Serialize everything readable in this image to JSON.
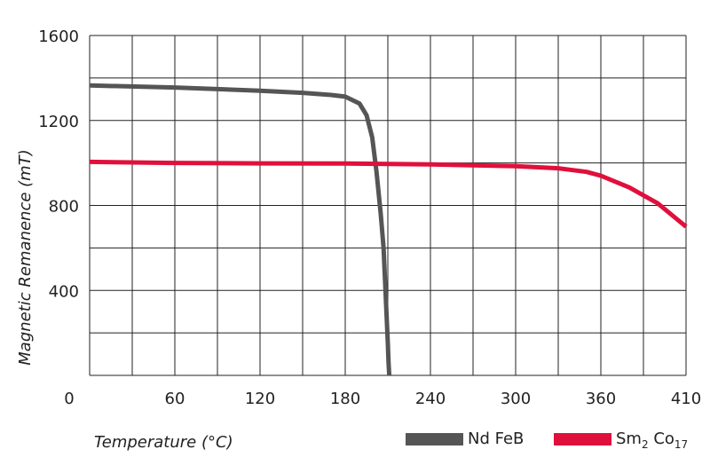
{
  "chart_data": {
    "type": "line",
    "xlabel": "Temperature (°C)",
    "ylabel": "Magnetic Remanence (mT)",
    "x_ticks": [
      0,
      60,
      120,
      180,
      240,
      300,
      360,
      410
    ],
    "y_ticks": [
      0,
      400,
      800,
      1200,
      1600
    ],
    "xlim": [
      0,
      420
    ],
    "ylim": [
      0,
      1600
    ],
    "grid": true,
    "legend_position": "bottom-right",
    "series": [
      {
        "name": "Nd FeB",
        "color": "#555555",
        "legend": {
          "main": "Nd FeB"
        },
        "points": [
          [
            0,
            1365
          ],
          [
            60,
            1355
          ],
          [
            120,
            1340
          ],
          [
            150,
            1330
          ],
          [
            170,
            1320
          ],
          [
            180,
            1312
          ],
          [
            190,
            1280
          ],
          [
            195,
            1225
          ],
          [
            199,
            1120
          ],
          [
            202,
            960
          ],
          [
            205,
            760
          ],
          [
            207,
            600
          ],
          [
            208,
            450
          ],
          [
            209,
            300
          ],
          [
            210,
            150
          ],
          [
            210.5,
            60
          ],
          [
            211,
            0
          ]
        ]
      },
      {
        "name": "Sm2 Co17",
        "color": "#e0103c",
        "legend": {
          "main": "Sm",
          "sub1": "2",
          "mid": " Co",
          "sub2": "17"
        },
        "points": [
          [
            0,
            1005
          ],
          [
            60,
            1000
          ],
          [
            120,
            998
          ],
          [
            180,
            997
          ],
          [
            240,
            993
          ],
          [
            300,
            985
          ],
          [
            330,
            975
          ],
          [
            350,
            958
          ],
          [
            360,
            940
          ],
          [
            380,
            885
          ],
          [
            400,
            810
          ],
          [
            420,
            700
          ]
        ]
      }
    ]
  }
}
